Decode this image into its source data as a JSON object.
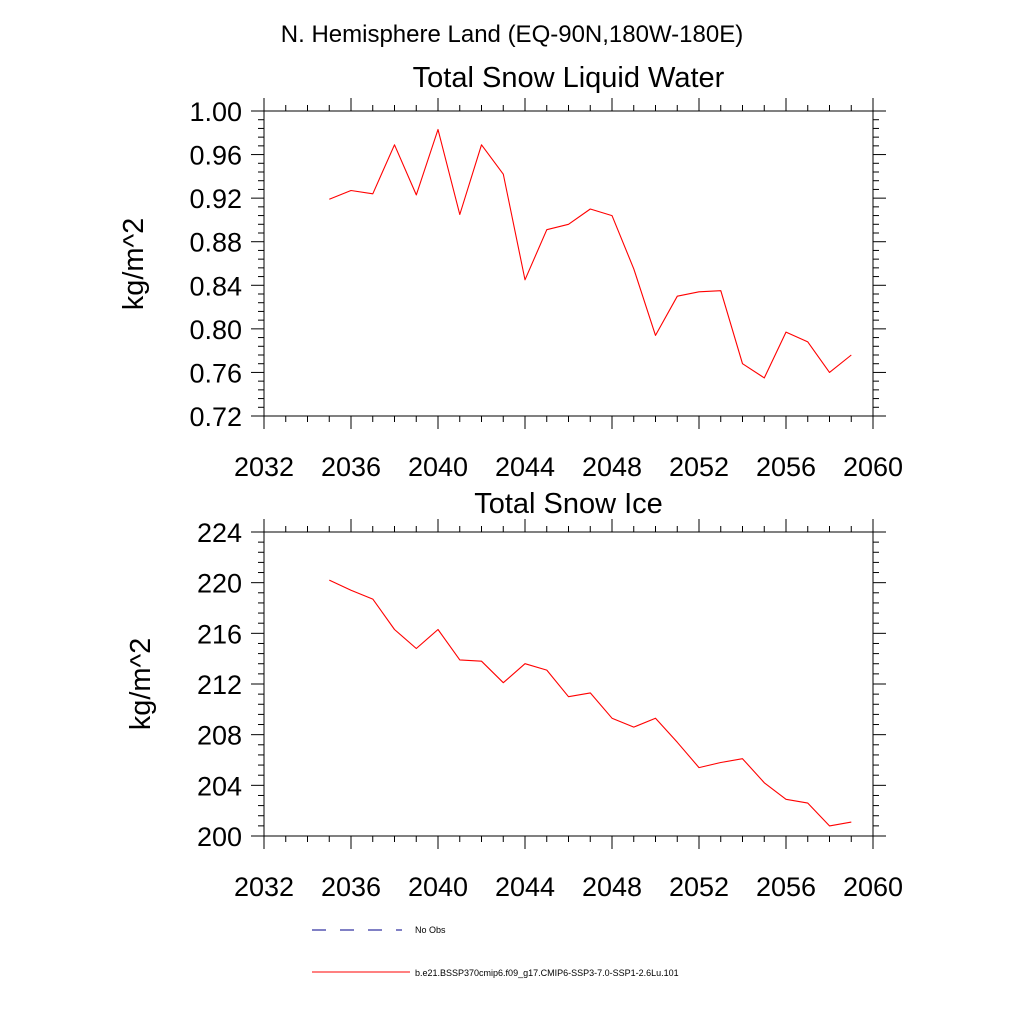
{
  "figure": {
    "header": "N. Hemisphere Land (EQ-90N,180W-180E)",
    "line_color": "#ff0000",
    "obs_color": "#00008b"
  },
  "legend": {
    "obs_label": "No Obs",
    "model_label": "b.e21.BSSP370cmip6.f09_g17.CMIP6-SSP3-7.0-SSP1-2.6Lu.101"
  },
  "chart_data": [
    {
      "type": "line",
      "title": "Total Snow Liquid Water",
      "xlabel": "",
      "ylabel": "kg/m^2",
      "xlim": [
        2032,
        2060
      ],
      "ylim": [
        0.72,
        1.0
      ],
      "xticks": [
        2032,
        2036,
        2040,
        2044,
        2048,
        2052,
        2056,
        2060
      ],
      "xtick_labels": [
        "2032",
        "2036",
        "2040",
        "2044",
        "2048",
        "2052",
        "2056",
        "2060"
      ],
      "yticks": [
        0.72,
        0.76,
        0.8,
        0.84,
        0.88,
        0.92,
        0.96,
        1.0
      ],
      "ytick_labels": [
        "0.72",
        "0.76",
        "0.80",
        "0.84",
        "0.88",
        "0.92",
        "0.96",
        "1.00"
      ],
      "grid": false,
      "x": [
        2035,
        2036,
        2037,
        2038,
        2039,
        2040,
        2041,
        2042,
        2043,
        2044,
        2045,
        2046,
        2047,
        2048,
        2049,
        2050,
        2051,
        2052,
        2053,
        2054,
        2055,
        2056,
        2057,
        2058,
        2059
      ],
      "series": [
        {
          "values": [
            0.919,
            0.927,
            0.924,
            0.969,
            0.923,
            0.983,
            0.905,
            0.969,
            0.942,
            0.845,
            0.891,
            0.896,
            0.91,
            0.904,
            0.855,
            0.794,
            0.83,
            0.834,
            0.835,
            0.768,
            0.755,
            0.797,
            0.788,
            0.76,
            0.776
          ]
        }
      ]
    },
    {
      "type": "line",
      "title": "Total Snow Ice",
      "xlabel": "",
      "ylabel": "kg/m^2",
      "xlim": [
        2032,
        2060
      ],
      "ylim": [
        200,
        224
      ],
      "xticks": [
        2032,
        2036,
        2040,
        2044,
        2048,
        2052,
        2056,
        2060
      ],
      "xtick_labels": [
        "2032",
        "2036",
        "2040",
        "2044",
        "2048",
        "2052",
        "2056",
        "2060"
      ],
      "yticks": [
        200,
        204,
        208,
        212,
        216,
        220,
        224
      ],
      "ytick_labels": [
        "200",
        "204",
        "208",
        "212",
        "216",
        "220",
        "224"
      ],
      "grid": false,
      "x": [
        2035,
        2036,
        2037,
        2038,
        2039,
        2040,
        2041,
        2042,
        2043,
        2044,
        2045,
        2046,
        2047,
        2048,
        2049,
        2050,
        2051,
        2052,
        2053,
        2054,
        2055,
        2056,
        2057,
        2058,
        2059
      ],
      "series": [
        {
          "values": [
            220.2,
            219.4,
            218.7,
            216.3,
            214.8,
            216.3,
            213.9,
            213.8,
            212.1,
            213.6,
            213.1,
            211.0,
            211.3,
            209.3,
            208.6,
            209.3,
            207.4,
            205.4,
            205.8,
            206.1,
            204.2,
            202.9,
            202.6,
            200.8,
            201.1
          ]
        }
      ]
    }
  ]
}
